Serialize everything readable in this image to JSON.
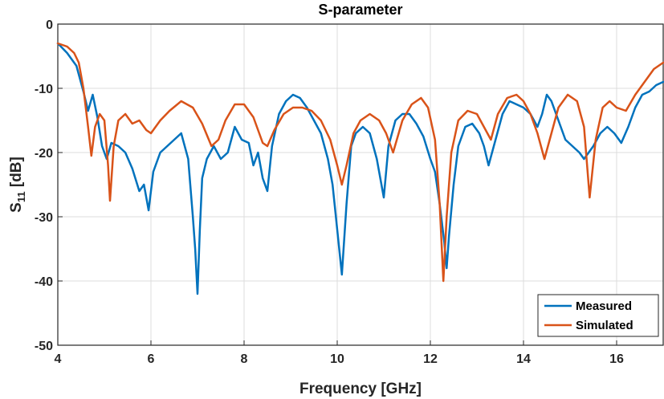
{
  "chart_data": {
    "type": "line",
    "title": "S-parameter",
    "xlabel": "Frequency [GHz]",
    "ylabel_main": "S",
    "ylabel_sub": "11",
    "ylabel_suffix": " [dB]",
    "xlim": [
      4,
      17
    ],
    "ylim": [
      -50,
      0
    ],
    "xticks": [
      4,
      6,
      8,
      10,
      12,
      14,
      16
    ],
    "yticks": [
      0,
      -10,
      -20,
      -30,
      -40,
      -50
    ],
    "grid": true,
    "legend_position": "bottom-right",
    "series": [
      {
        "name": "Measured",
        "color": "#0072BD",
        "x": [
          4.0,
          4.2,
          4.4,
          4.55,
          4.65,
          4.75,
          4.85,
          4.95,
          5.05,
          5.15,
          5.3,
          5.45,
          5.6,
          5.75,
          5.85,
          5.95,
          6.05,
          6.2,
          6.35,
          6.5,
          6.65,
          6.8,
          6.9,
          6.95,
          7.0,
          7.05,
          7.1,
          7.2,
          7.35,
          7.5,
          7.65,
          7.8,
          7.95,
          8.1,
          8.2,
          8.3,
          8.4,
          8.5,
          8.6,
          8.75,
          8.9,
          9.05,
          9.2,
          9.35,
          9.5,
          9.65,
          9.8,
          9.9,
          10.0,
          10.1,
          10.2,
          10.3,
          10.4,
          10.55,
          10.7,
          10.85,
          11.0,
          11.1,
          11.25,
          11.4,
          11.55,
          11.7,
          11.85,
          12.0,
          12.1,
          12.2,
          12.3,
          12.35,
          12.4,
          12.5,
          12.6,
          12.75,
          12.9,
          13.05,
          13.15,
          13.25,
          13.4,
          13.55,
          13.7,
          13.85,
          14.0,
          14.15,
          14.3,
          14.4,
          14.5,
          14.6,
          14.75,
          14.9,
          15.05,
          15.2,
          15.3,
          15.4,
          15.5,
          15.65,
          15.8,
          15.95,
          16.1,
          16.25,
          16.4,
          16.55,
          16.7,
          16.85,
          17.0
        ],
        "y": [
          -3,
          -4.5,
          -6.5,
          -10.5,
          -13.5,
          -11,
          -14.5,
          -19,
          -21,
          -18.5,
          -19,
          -20,
          -22.5,
          -26,
          -25,
          -29,
          -23,
          -20,
          -19,
          -18,
          -17,
          -21,
          -30,
          -35,
          -42,
          -32,
          -24,
          -21,
          -19,
          -21,
          -20,
          -16,
          -18,
          -18.5,
          -22,
          -20,
          -24,
          -26,
          -19,
          -14,
          -12,
          -11,
          -11.5,
          -13,
          -15,
          -17,
          -21,
          -25,
          -32,
          -39,
          -28,
          -19,
          -17,
          -16,
          -17,
          -21,
          -27,
          -19,
          -15,
          -14,
          -14,
          -15.5,
          -17.5,
          -21,
          -23,
          -28,
          -34,
          -38,
          -33,
          -25,
          -19,
          -16,
          -15.5,
          -17,
          -19,
          -22,
          -18,
          -14,
          -12,
          -12.5,
          -13,
          -14,
          -16,
          -14,
          -11,
          -12,
          -15,
          -18,
          -19,
          -20,
          -21,
          -20,
          -19,
          -17,
          -16,
          -17,
          -18.5,
          -16,
          -13,
          -11,
          -10.5,
          -9.5,
          -9
        ]
      },
      {
        "name": "Simulated",
        "color": "#D95319",
        "x": [
          4.0,
          4.2,
          4.35,
          4.45,
          4.55,
          4.65,
          4.72,
          4.8,
          4.9,
          5.0,
          5.08,
          5.12,
          5.2,
          5.3,
          5.45,
          5.6,
          5.75,
          5.9,
          6.0,
          6.2,
          6.4,
          6.65,
          6.9,
          7.1,
          7.3,
          7.45,
          7.6,
          7.8,
          8.0,
          8.2,
          8.4,
          8.5,
          8.65,
          8.85,
          9.05,
          9.25,
          9.45,
          9.65,
          9.85,
          10.0,
          10.1,
          10.2,
          10.35,
          10.5,
          10.7,
          10.9,
          11.05,
          11.2,
          11.4,
          11.6,
          11.8,
          11.95,
          12.1,
          12.2,
          12.28,
          12.35,
          12.45,
          12.6,
          12.8,
          13.0,
          13.15,
          13.3,
          13.45,
          13.65,
          13.85,
          14.0,
          14.15,
          14.3,
          14.45,
          14.6,
          14.75,
          14.95,
          15.15,
          15.3,
          15.42,
          15.55,
          15.7,
          15.85,
          16.0,
          16.2,
          16.4,
          16.6,
          16.8,
          17.0
        ],
        "y": [
          -3,
          -3.5,
          -4.5,
          -6,
          -10,
          -16,
          -20.5,
          -16,
          -14,
          -15,
          -22,
          -27.5,
          -19,
          -15,
          -14,
          -15.5,
          -15,
          -16.5,
          -17,
          -15,
          -13.5,
          -12,
          -13,
          -15.5,
          -19,
          -18,
          -15,
          -12.5,
          -12.5,
          -14.5,
          -18.5,
          -19,
          -16.5,
          -14,
          -13,
          -13,
          -13.5,
          -15,
          -18,
          -22,
          -25,
          -22,
          -17,
          -15,
          -14,
          -15,
          -17,
          -20,
          -15,
          -12.5,
          -11.5,
          -13,
          -18,
          -28,
          -40,
          -30,
          -20,
          -15,
          -13.5,
          -14,
          -16,
          -18,
          -14,
          -11.5,
          -11,
          -12,
          -14,
          -17,
          -21,
          -17,
          -13,
          -11,
          -12,
          -16,
          -27,
          -18,
          -13,
          -12,
          -13,
          -13.5,
          -11,
          -9,
          -7,
          -6
        ]
      }
    ]
  }
}
